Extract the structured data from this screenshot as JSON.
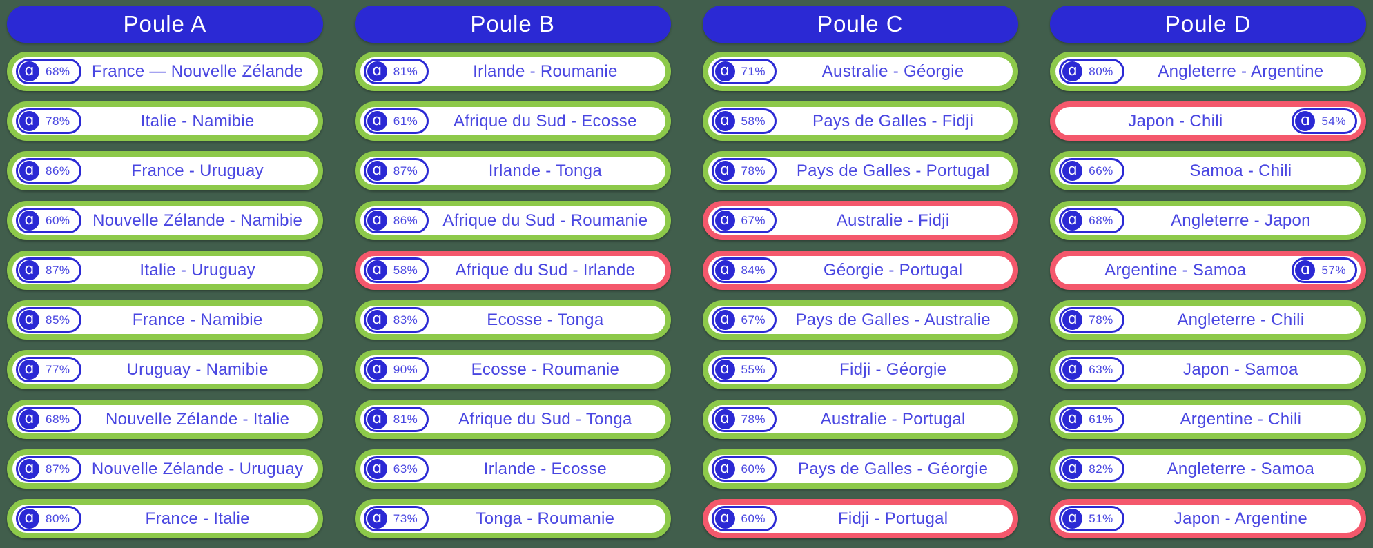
{
  "colors": {
    "background": "#415E4C",
    "accent_blue": "#2B29D4",
    "text_blue": "#4946E1",
    "status_green": "#8DC94A",
    "status_red": "#F4586C",
    "white": "#FFFFFF"
  },
  "icon": {
    "name": "a-logo-icon",
    "glyph": "ɑ"
  },
  "pools": [
    {
      "title": "Poule A",
      "matches": [
        {
          "confidence": "68%",
          "label": "France — Nouvelle Zélande",
          "status": "green",
          "badge_side": "left"
        },
        {
          "confidence": "78%",
          "label": "Italie - Namibie",
          "status": "green",
          "badge_side": "left"
        },
        {
          "confidence": "86%",
          "label": "France - Uruguay",
          "status": "green",
          "badge_side": "left"
        },
        {
          "confidence": "60%",
          "label": "Nouvelle Zélande - Namibie",
          "status": "green",
          "badge_side": "left"
        },
        {
          "confidence": "87%",
          "label": "Italie - Uruguay",
          "status": "green",
          "badge_side": "left"
        },
        {
          "confidence": "85%",
          "label": "France - Namibie",
          "status": "green",
          "badge_side": "left"
        },
        {
          "confidence": "77%",
          "label": "Uruguay - Namibie",
          "status": "green",
          "badge_side": "left"
        },
        {
          "confidence": "68%",
          "label": "Nouvelle Zélande - Italie",
          "status": "green",
          "badge_side": "left"
        },
        {
          "confidence": "87%",
          "label": "Nouvelle Zélande - Uruguay",
          "status": "green",
          "badge_side": "left"
        },
        {
          "confidence": "80%",
          "label": "France - Italie",
          "status": "green",
          "badge_side": "left"
        }
      ]
    },
    {
      "title": "Poule B",
      "matches": [
        {
          "confidence": "81%",
          "label": "Irlande - Roumanie",
          "status": "green",
          "badge_side": "left"
        },
        {
          "confidence": "61%",
          "label": "Afrique du Sud - Ecosse",
          "status": "green",
          "badge_side": "left"
        },
        {
          "confidence": "87%",
          "label": "Irlande - Tonga",
          "status": "green",
          "badge_side": "left"
        },
        {
          "confidence": "86%",
          "label": "Afrique du Sud - Roumanie",
          "status": "green",
          "badge_side": "left"
        },
        {
          "confidence": "58%",
          "label": "Afrique du Sud - Irlande",
          "status": "red",
          "badge_side": "left"
        },
        {
          "confidence": "83%",
          "label": "Ecosse - Tonga",
          "status": "green",
          "badge_side": "left"
        },
        {
          "confidence": "90%",
          "label": "Ecosse - Roumanie",
          "status": "green",
          "badge_side": "left"
        },
        {
          "confidence": "81%",
          "label": "Afrique du Sud - Tonga",
          "status": "green",
          "badge_side": "left"
        },
        {
          "confidence": "63%",
          "label": "Irlande - Ecosse",
          "status": "green",
          "badge_side": "left"
        },
        {
          "confidence": "73%",
          "label": "Tonga - Roumanie",
          "status": "green",
          "badge_side": "left"
        }
      ]
    },
    {
      "title": "Poule C",
      "matches": [
        {
          "confidence": "71%",
          "label": "Australie - Géorgie",
          "status": "green",
          "badge_side": "left"
        },
        {
          "confidence": "58%",
          "label": "Pays de Galles - Fidji",
          "status": "green",
          "badge_side": "left"
        },
        {
          "confidence": "78%",
          "label": "Pays de Galles - Portugal",
          "status": "green",
          "badge_side": "left"
        },
        {
          "confidence": "67%",
          "label": "Australie - Fidji",
          "status": "red",
          "badge_side": "left"
        },
        {
          "confidence": "84%",
          "label": "Géorgie - Portugal",
          "status": "red",
          "badge_side": "left"
        },
        {
          "confidence": "67%",
          "label": "Pays de Galles - Australie",
          "status": "green",
          "badge_side": "left"
        },
        {
          "confidence": "55%",
          "label": "Fidji - Géorgie",
          "status": "green",
          "badge_side": "left"
        },
        {
          "confidence": "78%",
          "label": "Australie - Portugal",
          "status": "green",
          "badge_side": "left"
        },
        {
          "confidence": "60%",
          "label": "Pays de Galles - Géorgie",
          "status": "green",
          "badge_side": "left"
        },
        {
          "confidence": "60%",
          "label": "Fidji - Portugal",
          "status": "red",
          "badge_side": "left"
        }
      ]
    },
    {
      "title": "Poule D",
      "matches": [
        {
          "confidence": "80%",
          "label": "Angleterre - Argentine",
          "status": "green",
          "badge_side": "left"
        },
        {
          "confidence": "54%",
          "label": "Japon - Chili",
          "status": "red",
          "badge_side": "right"
        },
        {
          "confidence": "66%",
          "label": "Samoa - Chili",
          "status": "green",
          "badge_side": "left"
        },
        {
          "confidence": "68%",
          "label": "Angleterre - Japon",
          "status": "green",
          "badge_side": "left"
        },
        {
          "confidence": "57%",
          "label": "Argentine - Samoa",
          "status": "red",
          "badge_side": "right"
        },
        {
          "confidence": "78%",
          "label": "Angleterre - Chili",
          "status": "green",
          "badge_side": "left"
        },
        {
          "confidence": "63%",
          "label": "Japon - Samoa",
          "status": "green",
          "badge_side": "left"
        },
        {
          "confidence": "61%",
          "label": "Argentine - Chili",
          "status": "green",
          "badge_side": "left"
        },
        {
          "confidence": "82%",
          "label": "Angleterre - Samoa",
          "status": "green",
          "badge_side": "left"
        },
        {
          "confidence": "51%",
          "label": "Japon - Argentine",
          "status": "red",
          "badge_side": "left"
        }
      ]
    }
  ]
}
